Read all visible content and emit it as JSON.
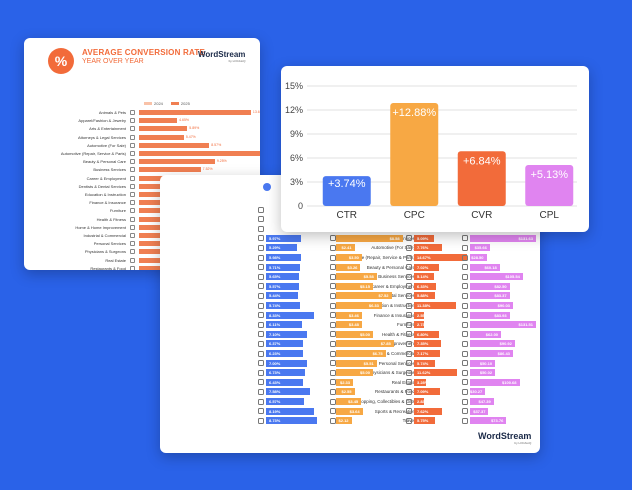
{
  "conv_card": {
    "title": "AVERAGE CONVERSION RATE",
    "subtitle": "YEAR OVER YEAR",
    "badge": "%",
    "logo": "WordStream",
    "logo_sub": "by LOCALiQ",
    "legend": [
      "2024",
      "2025"
    ],
    "colors": {
      "y2024": "#f9c2a8",
      "y2025": "#f07f52"
    },
    "rows": [
      {
        "label": "Animals & Pets",
        "value": "13.65%",
        "pct": 13.65
      },
      {
        "label": "Apparel/Fashion & Jewelry",
        "value": "4.65%",
        "pct": 4.65
      },
      {
        "label": "Arts & Entertainment",
        "value": "5.89%",
        "pct": 5.89
      },
      {
        "label": "Attorneys & Legal Services",
        "value": "5.47%",
        "pct": 5.47
      },
      {
        "label": "Automotive (For Sale)",
        "value": "8.57%",
        "pct": 8.57
      },
      {
        "label": "Automotive (Repair, Service & Parts)",
        "value": "14.77%",
        "pct": 14.77
      },
      {
        "label": "Beauty & Personal Care",
        "value": "9.25%",
        "pct": 9.25
      },
      {
        "label": "Business Services",
        "value": "7.52%",
        "pct": 7.52
      },
      {
        "label": "Career & Employment",
        "value": "6.03%",
        "pct": 6.03
      },
      {
        "label": "Dentists & Dental Services",
        "value": "9.11%",
        "pct": 9.11
      },
      {
        "label": "Education & Instruction",
        "value": "13.67%",
        "pct": 13.67
      },
      {
        "label": "Finance & Insurance",
        "value": "3.37%",
        "pct": 3.37
      },
      {
        "label": "Furniture",
        "value": "",
        "pct": 3.9
      },
      {
        "label": "Health & Fitness",
        "value": "",
        "pct": 5.8
      },
      {
        "label": "Home & Home Improvement",
        "value": "",
        "pct": 2.5
      },
      {
        "label": "Industrial & Commercial",
        "value": "",
        "pct": 3.6
      },
      {
        "label": "Personal Services",
        "value": "",
        "pct": 9.7
      },
      {
        "label": "Physicians & Surgeons",
        "value": "",
        "pct": 8.8
      },
      {
        "label": "Real Estate",
        "value": "",
        "pct": 3.0
      },
      {
        "label": "Restaurants & Food",
        "value": "",
        "pct": 7.2
      },
      {
        "label": "Shopping, Collectibles & Gifts",
        "value": "",
        "pct": 4.0
      },
      {
        "label": "Sports & Recreation",
        "value": "",
        "pct": 6.1
      },
      {
        "label": "Travel",
        "value": "",
        "pct": 5.4
      }
    ]
  },
  "table_card": {
    "logo": "WordStream",
    "logo_sub": "by LOCALiQ",
    "colors": {
      "ctr": "#4a78f0",
      "cpc": "#f7a844",
      "cvr": "#f26b3a",
      "cpl": "#e084f0"
    },
    "rows": [
      {
        "label": "Animals & Pets",
        "ctr": "",
        "ctr_w": 0,
        "cpc": "",
        "cpc_w": 0,
        "cvr": "",
        "cvr_w": 0,
        "cpl": "",
        "cpl_w": 0
      },
      {
        "label": "Apparel/Fashion & Jewelry",
        "ctr": "",
        "ctr_w": 0,
        "cpc": "",
        "cpc_w": 0,
        "cvr": "",
        "cvr_w": 0,
        "cpl": "",
        "cpl_w": 0
      },
      {
        "label": "Arts & Entertainment",
        "ctr": "",
        "ctr_w": 0,
        "cpc": "",
        "cpc_w": 0,
        "cvr": "",
        "cvr_w": 0,
        "cpl": "",
        "cpl_w": 0
      },
      {
        "label": "Attorneys & Legal Services",
        "ctr": "5.97%",
        "ctr_w": 0.45,
        "cpc": "$8.58",
        "cpc_w": 0.9,
        "cvr": "5.09%",
        "cvr_w": 0.35,
        "cpl": "$131.63",
        "cpl_w": 1.0
      },
      {
        "label": "Automotive (For Sale)",
        "ctr": "5.29%",
        "ctr_w": 0.4,
        "cpc": "$2.41",
        "cpc_w": 0.25,
        "cvr": "7.76%",
        "cvr_w": 0.5,
        "cpl": "$35.66",
        "cpl_w": 0.3
      },
      {
        "label": "Automotive (Repair, Service & Parts)",
        "ctr": "5.98%",
        "ctr_w": 0.45,
        "cpc": "$3.50",
        "cpc_w": 0.35,
        "cvr": "14.67%",
        "cvr_w": 0.95,
        "cpl": "$28.50",
        "cpl_w": 0.25
      },
      {
        "label": "Beauty & Personal Care",
        "ctr": "5.71%",
        "ctr_w": 0.43,
        "cpc": "$3.26",
        "cpc_w": 0.33,
        "cvr": "7.02%",
        "cvr_w": 0.45,
        "cpl": "$60.18",
        "cpl_w": 0.45
      },
      {
        "label": "Business Services",
        "ctr": "5.65%",
        "ctr_w": 0.42,
        "cpc": "$5.58",
        "cpc_w": 0.55,
        "cvr": "5.14%",
        "cvr_w": 0.35,
        "cpl": "$105.54",
        "cpl_w": 0.8
      },
      {
        "label": "Career & Employment",
        "ctr": "5.57%",
        "ctr_w": 0.42,
        "cpc": "$5.15",
        "cpc_w": 0.5,
        "cvr": "6.33%",
        "cvr_w": 0.4,
        "cpl": "$82.50",
        "cpl_w": 0.6
      },
      {
        "label": "Dentists & Dental Services",
        "ctr": "5.44%",
        "ctr_w": 0.41,
        "cpc": "$7.52",
        "cpc_w": 0.75,
        "cvr": "5.88%",
        "cvr_w": 0.38,
        "cpl": "$83.37",
        "cpl_w": 0.6
      },
      {
        "label": "Education & Instruction",
        "ctr": "5.74%",
        "ctr_w": 0.43,
        "cpc": "$6.33",
        "cpc_w": 0.62,
        "cvr": "11.38%",
        "cvr_w": 0.75,
        "cpl": "$90.03",
        "cpl_w": 0.65
      },
      {
        "label": "Finance & Insurance",
        "ctr": "8.33%",
        "ctr_w": 0.62,
        "cpc": "$3.46",
        "cpc_w": 0.35,
        "cvr": "2.55%",
        "cvr_w": 0.18,
        "cpl": "$83.93",
        "cpl_w": 0.6
      },
      {
        "label": "Furniture",
        "ctr": "6.11%",
        "ctr_w": 0.46,
        "cpc": "$3.48",
        "cpc_w": 0.35,
        "cvr": "2.73%",
        "cvr_w": 0.18,
        "cpl": "$131.51",
        "cpl_w": 1.0
      },
      {
        "label": "Health & Fitness",
        "ctr": "7.10%",
        "ctr_w": 0.53,
        "cpc": "$5.00",
        "cpc_w": 0.5,
        "cvr": "6.80%",
        "cvr_w": 0.44,
        "cpl": "$62.00",
        "cpl_w": 0.47
      },
      {
        "label": "Home & Home Improvement",
        "ctr": "6.37%",
        "ctr_w": 0.48,
        "cpc": "$7.85",
        "cpc_w": 0.78,
        "cvr": "7.35%",
        "cvr_w": 0.48,
        "cpl": "$90.92",
        "cpl_w": 0.68
      },
      {
        "label": "Industrial & Commercial",
        "ctr": "6.23%",
        "ctr_w": 0.47,
        "cpc": "$6.75",
        "cpc_w": 0.67,
        "cvr": "7.17%",
        "cvr_w": 0.47,
        "cpl": "$86.43",
        "cpl_w": 0.65
      },
      {
        "label": "Personal Services",
        "ctr": "7.00%",
        "ctr_w": 0.52,
        "cpc": "$5.51",
        "cpc_w": 0.55,
        "cvr": "5.74%",
        "cvr_w": 0.37,
        "cpl": "$50.10",
        "cpl_w": 0.38
      },
      {
        "label": "Physicians & Surgeons",
        "ctr": "6.73%",
        "ctr_w": 0.5,
        "cpc": "$5.00",
        "cpc_w": 0.5,
        "cvr": "11.62%",
        "cvr_w": 0.77,
        "cpl": "$50.02",
        "cpl_w": 0.38
      },
      {
        "label": "Real Estate",
        "ctr": "6.43%",
        "ctr_w": 0.48,
        "cpc": "$2.33",
        "cpc_w": 0.23,
        "cvr": "3.28%",
        "cvr_w": 0.21,
        "cpl": "$100.68",
        "cpl_w": 0.75
      },
      {
        "label": "Restaurants & Food",
        "ctr": "7.58%",
        "ctr_w": 0.57,
        "cpc": "$2.55",
        "cpc_w": 0.25,
        "cvr": "7.09%",
        "cvr_w": 0.46,
        "cpl": "$30.27",
        "cpl_w": 0.23
      },
      {
        "label": "Shopping, Collectibles & Gifts",
        "ctr": "6.57%",
        "ctr_w": 0.49,
        "cpc": "$3.45",
        "cpc_w": 0.34,
        "cvr": "2.83%",
        "cvr_w": 0.18,
        "cpl": "$47.39",
        "cpl_w": 0.36
      },
      {
        "label": "Sports & Recreation",
        "ctr": "8.19%",
        "ctr_w": 0.61,
        "cpc": "$3.64",
        "cpc_w": 0.36,
        "cvr": "7.62%",
        "cvr_w": 0.5,
        "cpl": "$37.37",
        "cpl_w": 0.28
      },
      {
        "label": "Travel",
        "ctr": "8.73%",
        "ctr_w": 0.65,
        "cpc": "$2.12",
        "cpc_w": 0.21,
        "cvr": "5.75%",
        "cvr_w": 0.37,
        "cpl": "$73.76",
        "cpl_w": 0.55
      }
    ]
  },
  "chart_data": {
    "type": "bar",
    "categories": [
      "CTR",
      "CPC",
      "CVR",
      "CPL"
    ],
    "values": [
      3.74,
      12.88,
      6.84,
      5.13
    ],
    "labels": [
      "+3.74%",
      "+12.88%",
      "+6.84%",
      "+5.13%"
    ],
    "colors": [
      "#4a78f0",
      "#f7a844",
      "#f26b3a",
      "#e084f0"
    ],
    "yticks": [
      "0",
      "3%",
      "6%",
      "9%",
      "12%",
      "15%"
    ],
    "ylim": [
      0,
      15
    ],
    "grid": true
  }
}
